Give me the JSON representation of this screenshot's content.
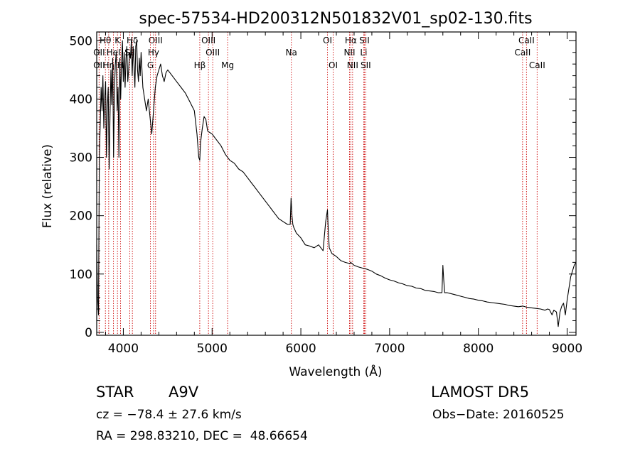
{
  "chart_data": {
    "type": "line",
    "title": "spec-57534-HD200312N501832V01_sp02-130.fits",
    "xlabel": "Wavelength (Å)",
    "ylabel": "Flux (relative)",
    "xlim": [
      3700,
      9100
    ],
    "ylim": [
      -5,
      515
    ],
    "xticks": [
      4000,
      5000,
      6000,
      7000,
      8000,
      9000
    ],
    "yticks": [
      0,
      100,
      200,
      300,
      400,
      500
    ],
    "grid": false,
    "line_color": "#000000",
    "marker_color": "#cc0000",
    "series": [
      {
        "x": [
          3700,
          3710,
          3720,
          3730,
          3740,
          3750,
          3760,
          3770,
          3780,
          3790,
          3800,
          3810,
          3820,
          3830,
          3840,
          3850,
          3860,
          3870,
          3880,
          3890,
          3900,
          3910,
          3920,
          3930,
          3940,
          3950,
          3960,
          3970,
          3980,
          3990,
          4000,
          4010,
          4020,
          4030,
          4040,
          4050,
          4060,
          4070,
          4080,
          4090,
          4100,
          4110,
          4120,
          4130,
          4140,
          4150,
          4160,
          4170,
          4180,
          4190,
          4200,
          4220,
          4240,
          4260,
          4280,
          4300,
          4320,
          4340,
          4360,
          4380,
          4400,
          4420,
          4440,
          4460,
          4480,
          4500,
          4550,
          4600,
          4650,
          4700,
          4750,
          4800,
          4830,
          4850,
          4861,
          4870,
          4890,
          4910,
          4930,
          4950,
          5000,
          5050,
          5100,
          5150,
          5200,
          5250,
          5300,
          5350,
          5400,
          5450,
          5500,
          5550,
          5600,
          5650,
          5700,
          5750,
          5800,
          5850,
          5880,
          5890,
          5900,
          5910,
          5920,
          5950,
          6000,
          6050,
          6100,
          6150,
          6200,
          6250,
          6280,
          6300,
          6310,
          6320,
          6350,
          6400,
          6450,
          6500,
          6550,
          6562,
          6600,
          6650,
          6700,
          6750,
          6800,
          6850,
          6900,
          6950,
          7000,
          7050,
          7100,
          7150,
          7200,
          7250,
          7300,
          7350,
          7400,
          7450,
          7500,
          7550,
          7590,
          7600,
          7610,
          7620,
          7650,
          7700,
          7750,
          7800,
          7850,
          7900,
          7950,
          8000,
          8050,
          8100,
          8150,
          8200,
          8250,
          8300,
          8350,
          8400,
          8450,
          8500,
          8550,
          8600,
          8650,
          8700,
          8750,
          8780,
          8800,
          8830,
          8850,
          8880,
          8900,
          8920,
          8940,
          8960,
          8980,
          9000,
          9020,
          9040,
          9060,
          9080,
          9100
        ],
        "y": [
          150,
          60,
          30,
          300,
          360,
          420,
          380,
          440,
          350,
          400,
          430,
          300,
          390,
          420,
          280,
          370,
          450,
          390,
          470,
          300,
          420,
          460,
          480,
          380,
          420,
          300,
          470,
          400,
          460,
          500,
          430,
          480,
          420,
          470,
          490,
          430,
          450,
          480,
          470,
          500,
          440,
          490,
          460,
          420,
          490,
          500,
          450,
          430,
          470,
          440,
          480,
          420,
          400,
          380,
          400,
          370,
          340,
          380,
          420,
          440,
          450,
          460,
          440,
          430,
          445,
          450,
          440,
          430,
          420,
          410,
          395,
          380,
          340,
          300,
          295,
          325,
          350,
          370,
          365,
          345,
          340,
          330,
          320,
          305,
          295,
          290,
          280,
          275,
          265,
          255,
          245,
          235,
          225,
          215,
          205,
          195,
          190,
          185,
          185,
          230,
          200,
          185,
          180,
          170,
          162,
          150,
          148,
          145,
          150,
          140,
          190,
          210,
          170,
          145,
          135,
          130,
          123,
          120,
          118,
          120,
          115,
          112,
          110,
          108,
          105,
          100,
          97,
          93,
          90,
          88,
          85,
          83,
          80,
          79,
          76,
          75,
          72,
          71,
          70,
          68,
          68,
          115,
          90,
          68,
          68,
          66,
          64,
          62,
          60,
          58,
          57,
          55,
          54,
          52,
          51,
          50,
          49,
          48,
          46,
          45,
          44,
          45,
          43,
          42,
          41,
          40,
          38,
          40,
          39,
          30,
          38,
          35,
          10,
          35,
          45,
          50,
          30,
          55,
          75,
          95,
          105,
          115,
          120
        ]
      }
    ],
    "line_markers": [
      {
        "label": "Hθ",
        "wavelength": 3798,
        "row": 1
      },
      {
        "label": "OII",
        "wavelength": 3727,
        "row": 2
      },
      {
        "label": "OII",
        "wavelength": 3727,
        "row": 3
      },
      {
        "label": "K",
        "wavelength": 3934,
        "row": 1
      },
      {
        "label": "Hη",
        "wavelength": 3835,
        "row": 3
      },
      {
        "label": "HeI",
        "wavelength": 3889,
        "row": 2
      },
      {
        "label": "H",
        "wavelength": 3968,
        "row": 3
      },
      {
        "label": "SII",
        "wavelength": 4072,
        "row": 2
      },
      {
        "label": "Hδ",
        "wavelength": 4102,
        "row": 1
      },
      {
        "label": "OIII",
        "wavelength": 4363,
        "row": 1
      },
      {
        "label": "Hγ",
        "wavelength": 4340,
        "row": 2
      },
      {
        "label": "G",
        "wavelength": 4305,
        "row": 3
      },
      {
        "label": "Hβ",
        "wavelength": 4861,
        "row": 3
      },
      {
        "label": "OIII",
        "wavelength": 4959,
        "row": 1
      },
      {
        "label": "OIII",
        "wavelength": 5007,
        "row": 2
      },
      {
        "label": "Mg",
        "wavelength": 5175,
        "row": 3
      },
      {
        "label": "Na",
        "wavelength": 5893,
        "row": 2
      },
      {
        "label": "OI",
        "wavelength": 6300,
        "row": 1
      },
      {
        "label": "OI",
        "wavelength": 6364,
        "row": 3
      },
      {
        "label": "Hα",
        "wavelength": 6563,
        "row": 1
      },
      {
        "label": "NII",
        "wavelength": 6548,
        "row": 2
      },
      {
        "label": "NII",
        "wavelength": 6583,
        "row": 3
      },
      {
        "label": "SII",
        "wavelength": 6716,
        "row": 1
      },
      {
        "label": "Li",
        "wavelength": 6708,
        "row": 2
      },
      {
        "label": "SII",
        "wavelength": 6731,
        "row": 3
      },
      {
        "label": "CaII",
        "wavelength": 8542,
        "row": 1
      },
      {
        "label": "CaII",
        "wavelength": 8498,
        "row": 2
      },
      {
        "label": "CaII",
        "wavelength": 8662,
        "row": 3
      }
    ]
  },
  "info": {
    "class_label": "STAR",
    "subclass": "A9V",
    "survey": "LAMOST DR5",
    "cz": "cz = −78.4 ± 27.6 km/s",
    "obs_date": "Obs−Date: 20160525",
    "radec": "RA = 298.83210, DEC =  48.66654"
  }
}
